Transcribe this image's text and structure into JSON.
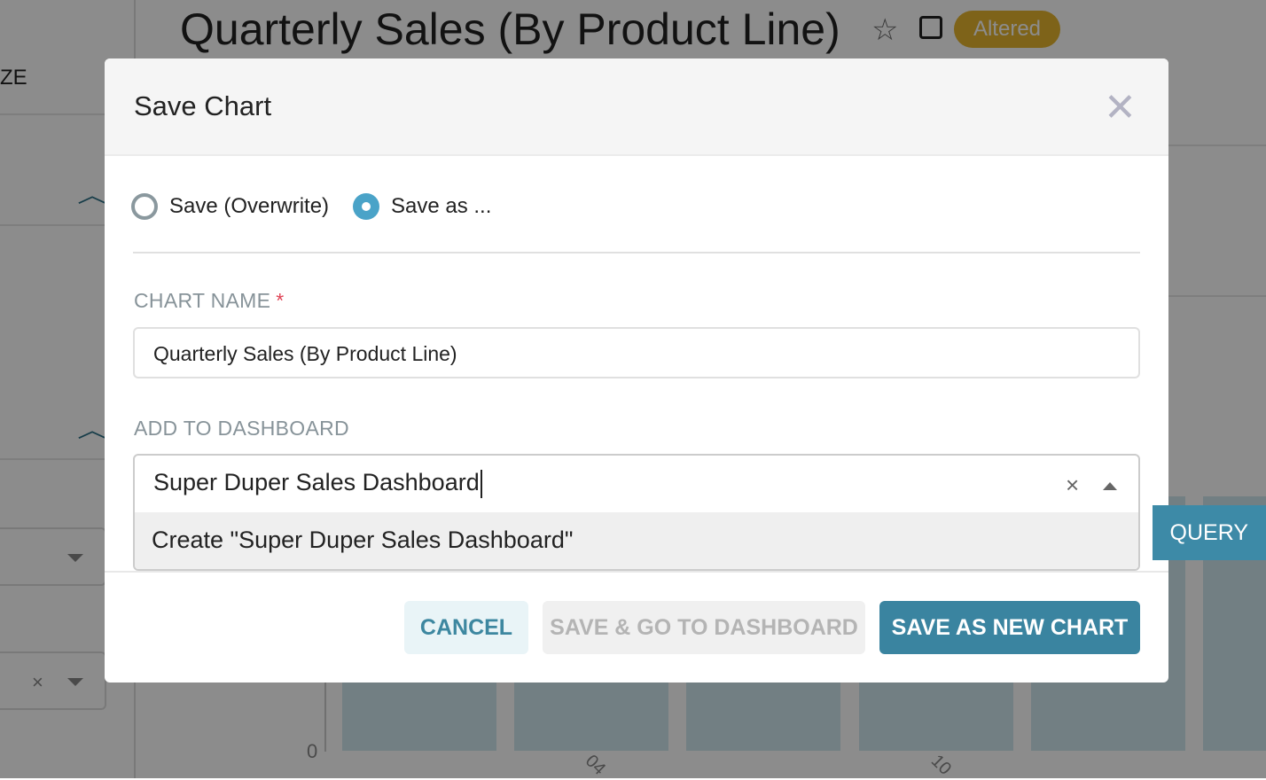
{
  "background": {
    "chart_title": "Quarterly Sales (By Product Line)",
    "badge": "Altered",
    "left_panel_fragment": "ZE",
    "query_button_fragment": "QUERY",
    "y_axis_tick": "0",
    "x_tick_fragments": [
      "04",
      "10"
    ],
    "colors": {
      "badge": "#7a5f1e",
      "query_button": "#224a57"
    }
  },
  "modal": {
    "title": "Save Chart",
    "close_icon": "close-icon",
    "radios": [
      {
        "label": "Save (Overwrite)",
        "checked": false
      },
      {
        "label": "Save as ...",
        "checked": true
      }
    ],
    "chart_name": {
      "label": "CHART NAME",
      "required_mark": "*",
      "value": "Quarterly Sales (By Product Line)"
    },
    "dashboard": {
      "label": "ADD TO DASHBOARD",
      "value": "Super Duper Sales Dashboard",
      "option": "Create \"Super Duper Sales Dashboard\"",
      "clear_icon": "×"
    },
    "buttons": {
      "cancel": "CANCEL",
      "save_go": "SAVE & GO TO DASHBOARD",
      "save_new": "SAVE AS NEW CHART"
    },
    "colors": {
      "primary": "#3a84a0",
      "radio": "#4aa3c8",
      "required": "#e04355"
    }
  }
}
